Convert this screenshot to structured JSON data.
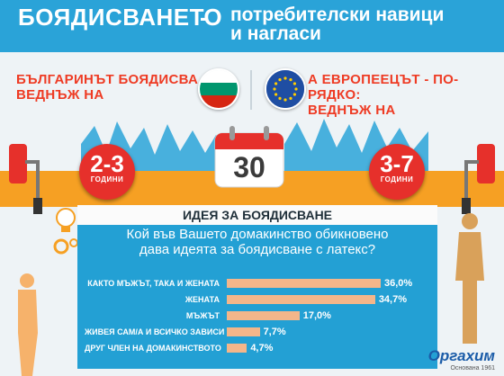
{
  "header": {
    "title": "БОЯДИСВАНЕТО",
    "dash": "-",
    "subtitle_line1": "потребителски навици",
    "subtitle_line2": "и нагласи"
  },
  "left_phrase": {
    "line1": "БЪЛГАРИНЪТ БОЯДИСВА",
    "line2": "ВЕДНЪЖ НА"
  },
  "right_phrase": {
    "line1": "А ЕВРОПЕЕЦЪТ - ПО-РЯДКО:",
    "line2": "ВЕДНЪЖ НА"
  },
  "badge_left": {
    "value": "2-3",
    "unit": "ГОДИНИ"
  },
  "badge_right": {
    "value": "3-7",
    "unit": "ГОДИНИ"
  },
  "calendar": {
    "value": "30"
  },
  "survey": {
    "title": "ИДЕЯ ЗА БОЯДИСВАНЕ",
    "question_line1": "Кой във Вашето домакинство обикновено",
    "question_line2": "дава идеята за боядисване с латекс?"
  },
  "chart_data": {
    "type": "bar",
    "orientation": "horizontal",
    "categories": [
      "КАКТО МЪЖЪТ, ТАКА И ЖЕНАТА",
      "ЖЕНАТА",
      "МЪЖЪТ",
      "ЖИВЕЯ САМ/А И ВСИЧКО ЗАВИСИ ОТ МЕН",
      "ДРУГ ЧЛЕН НА ДОМАКИНСТВОТО"
    ],
    "values": [
      36.0,
      34.7,
      17.0,
      7.7,
      4.7
    ],
    "value_labels": [
      "36,0%",
      "34,7%",
      "17,0%",
      "7,7%",
      "4,7%"
    ],
    "xlim": [
      0,
      40
    ],
    "bar_color": "#f4b68a"
  },
  "logo": {
    "name": "Оргахим",
    "sub": "Основана 1961"
  },
  "colors": {
    "header": "#2aa3d8",
    "accent_red": "#ee3b24",
    "orange": "#f6a023",
    "panel": "#23a0d4"
  }
}
